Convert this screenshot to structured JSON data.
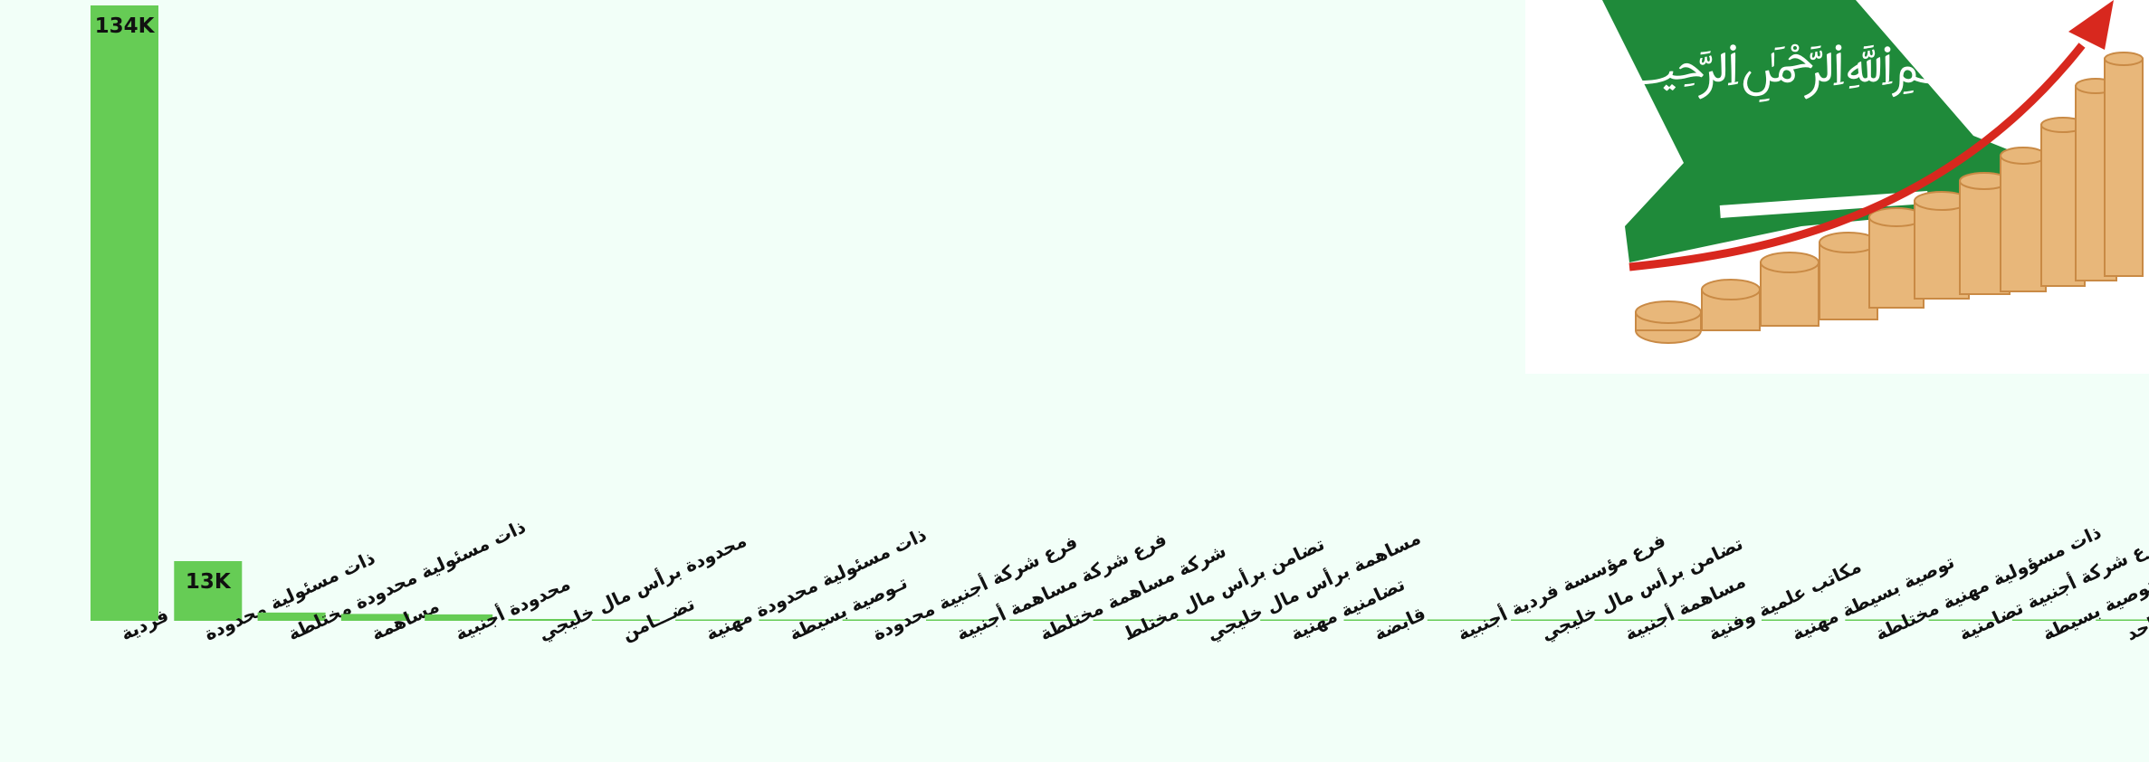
{
  "chart_data": {
    "type": "bar",
    "color": "#66cc55",
    "categories": [
      "مؤسسة فردية",
      "ذات مسئولية محدودة",
      "ذات مسئولية محدودة مختلطة",
      "مساهمة",
      "محدودة أجنبية",
      "محدودة برأس مال خليجي",
      "تضـــامن",
      "ذات مسئولية محدودة مهنية",
      "تـوصية بسيطة",
      "فرع شركة أجنبية محدودة",
      "فرع شركة مساهمة أجنبية",
      "شركة مساهمة مختلطة",
      "تضامن برأس مال مختلط",
      "مساهمة برأس مال خليجي",
      "تضامنية مهنية",
      "قابضة",
      "فرع مؤسسة فردية أجنبية",
      "تضامن برأس مال خليجي",
      "مساهمة أجنبية",
      "مكاتب علمية وفنية",
      "توصية بسيطة مهنية",
      "ذات مسؤولية مهنية مختلطة",
      "فرع شركة أجنبية تضامنية",
      "فرع شركة أجنبية توصية بسيطة",
      "محدودة لشخص واحد"
    ],
    "values": [
      134000,
      13000,
      1800,
      1500,
      1400,
      400,
      300,
      300,
      300,
      300,
      300,
      300,
      300,
      300,
      300,
      300,
      300,
      300,
      300,
      300,
      300,
      300,
      300,
      300,
      300
    ],
    "value_labels": [
      "134K",
      "13K",
      null,
      null,
      null,
      null,
      null,
      null,
      null,
      null,
      null,
      null,
      null,
      null,
      null,
      null,
      null,
      null,
      null,
      null,
      null,
      null,
      null,
      null,
      null
    ]
  }
}
